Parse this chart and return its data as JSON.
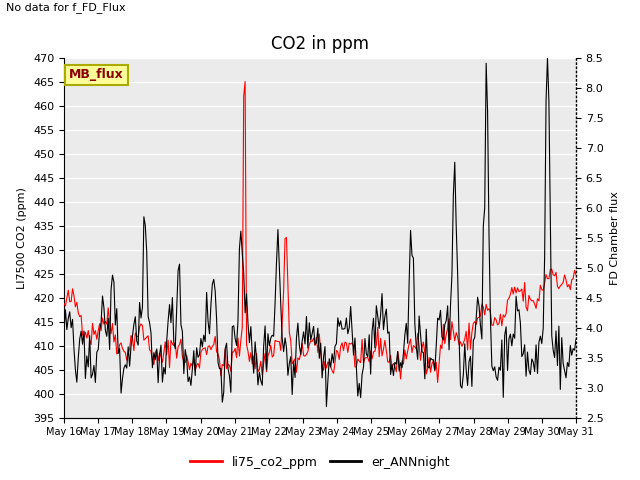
{
  "title": "CO2 in ppm",
  "top_left_text": "No data for f_FD_Flux",
  "legend_box_text": "MB_flux",
  "ylabel_left": "LI7500 CO2 (ppm)",
  "ylabel_right": "FD Chamber flux",
  "ylim_left": [
    395,
    470
  ],
  "ylim_right": [
    2.5,
    8.5
  ],
  "yticks_left": [
    395,
    400,
    405,
    410,
    415,
    420,
    425,
    430,
    435,
    440,
    445,
    450,
    455,
    460,
    465,
    470
  ],
  "yticks_right": [
    2.5,
    3.0,
    3.5,
    4.0,
    4.5,
    5.0,
    5.5,
    6.0,
    6.5,
    7.0,
    7.5,
    8.0,
    8.5
  ],
  "xtick_labels": [
    "May 16",
    "May 17",
    "May 18",
    "May 19",
    "May 20",
    "May 21",
    "May 22",
    "May 23",
    "May 24",
    "May 25",
    "May 26",
    "May 27",
    "May 28",
    "May 29",
    "May 30",
    "May 31"
  ],
  "line1_color": "#ff0000",
  "line1_label": "li75_co2_ppm",
  "line2_color": "#000000",
  "line2_label": "er_ANNnight",
  "plot_bg_color": "#ebebeb",
  "grid_color": "#ffffff",
  "legend_box_color": "#ffff99",
  "legend_box_edge": "#aaaa00"
}
